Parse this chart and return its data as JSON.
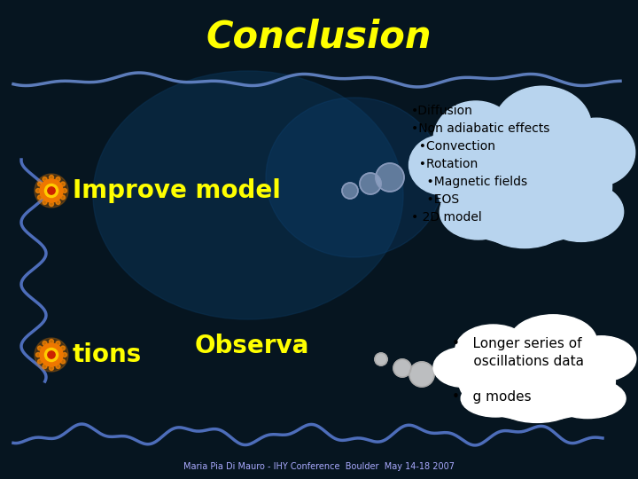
{
  "title": "Conclusion",
  "title_color": "#FFFF00",
  "title_fontsize": 30,
  "bg_color": "#061520",
  "improve_model_text": "Improve model",
  "improve_model_color": "#FFFF00",
  "improve_model_fontsize": 20,
  "observa_text": "Observa",
  "observa_color": "#FFFF00",
  "observa_fontsize": 20,
  "tions_text": "tions",
  "tions_color": "#FFFF00",
  "tions_fontsize": 20,
  "cloud1_items": [
    "•Diffusion",
    "•Non adiabatic effects",
    "  •Convection",
    "  •Rotation",
    "    •Magnetic fields",
    "    •EOS",
    "• 2D model"
  ],
  "cloud1_color": "#b8d4ee",
  "cloud2_color": "#ffffff",
  "footer_text": "Maria Pia Di Mauro - IHY Conference  Boulder  May 14-18 2007",
  "footer_color": "#aaaaff"
}
